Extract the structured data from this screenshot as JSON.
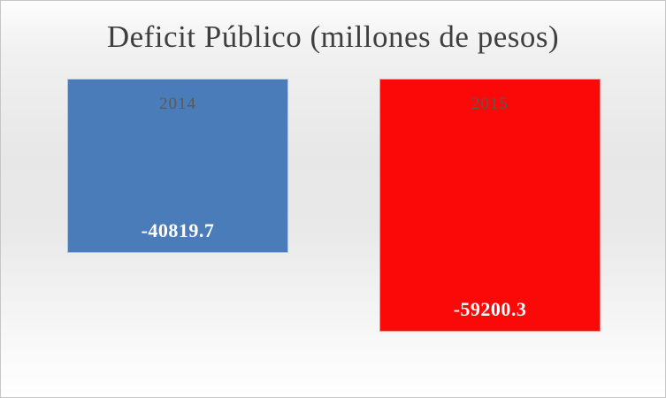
{
  "chart_data": {
    "type": "bar",
    "title": "Deficit Público (millones de pesos)",
    "categories": [
      "2014",
      "2015"
    ],
    "values": [
      -40819.7,
      -59200.3
    ],
    "value_labels": [
      "-40819.7",
      "-59200.3"
    ],
    "bar_colors": [
      "#4a7cba",
      "#fb0808"
    ],
    "orientation": "vertical",
    "baseline": 0,
    "bars_hang_downward_from_baseline": true,
    "ylim": [
      -59200.3,
      0
    ],
    "grid": false,
    "axes_visible": false,
    "legend_position": "none",
    "value_label_position": "inside-end",
    "category_label_position": "inside-base"
  },
  "title": {
    "text": "Deficit Público (millones de pesos)",
    "color": "#3f3f3f"
  },
  "bars": [
    {
      "category": "2014",
      "value": -40819.7,
      "value_label": "-40819.7",
      "color": "#4a7cba"
    },
    {
      "category": "2015",
      "value": -59200.3,
      "value_label": "-59200.3",
      "color": "#fb0808"
    }
  ],
  "colors": {
    "background_top": "#fdfdfd",
    "background_middle": "#e7e7e7",
    "background_bottom": "#ffffff",
    "slide_border": "#c6c6c6",
    "title_text": "#3f3f3f",
    "category_text": "#595959",
    "value_text": "#ffffff",
    "bar_2014": "#4a7cba",
    "bar_2015": "#fb0808",
    "shadow": "#686868"
  }
}
